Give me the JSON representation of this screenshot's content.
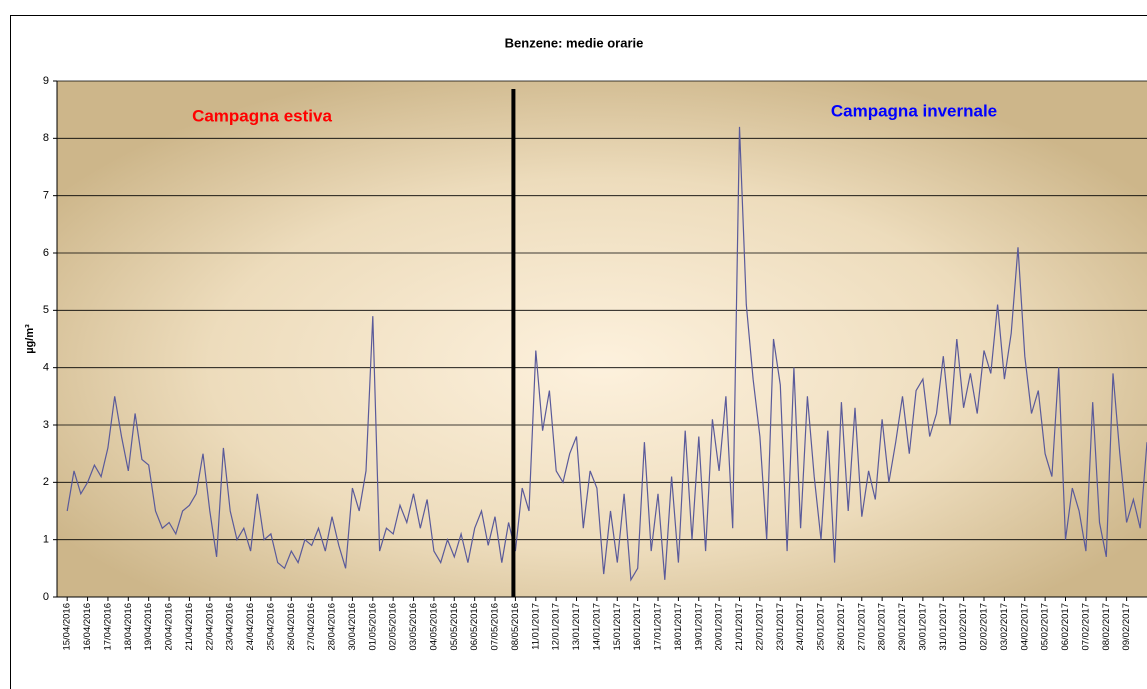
{
  "chart_data": {
    "type": "line",
    "title": "Benzene: medie orarie",
    "y_label": "µg/m³",
    "annotations": [
      {
        "text": "Campagna estiva",
        "color": "#ff0000"
      },
      {
        "text": "Campagna invernale",
        "color": "#0000ff"
      }
    ],
    "color": "#5a5a9a",
    "values": [
      1.5,
      2.2,
      1.8,
      2.0,
      2.3,
      2.1,
      2.6,
      3.5,
      2.8,
      2.2,
      3.2,
      2.4,
      2.3,
      1.5,
      1.2,
      1.3,
      1.1,
      1.5,
      1.6,
      1.8,
      2.5,
      1.5,
      0.7,
      2.6,
      1.5,
      1.0,
      1.2,
      0.8,
      1.8,
      1.0,
      1.1,
      0.6,
      0.5,
      0.8,
      0.6,
      1.0,
      0.9,
      1.2,
      0.8,
      1.4,
      0.9,
      0.5,
      1.9,
      1.5,
      2.2,
      4.9,
      0.8,
      1.2,
      1.1,
      1.6,
      1.3,
      1.8,
      1.2,
      1.7,
      0.8,
      0.6,
      1.0,
      0.7,
      1.1,
      0.6,
      1.2,
      1.5,
      0.9,
      1.4,
      0.6,
      1.3,
      0.8,
      1.9,
      1.5,
      4.3,
      2.9,
      3.6,
      2.2,
      2.0,
      2.5,
      2.8,
      1.2,
      2.2,
      1.9,
      0.4,
      1.5,
      0.6,
      1.8,
      0.3,
      0.5,
      2.7,
      0.8,
      1.8,
      0.3,
      2.1,
      0.6,
      2.9,
      1.0,
      2.8,
      0.8,
      3.1,
      2.2,
      3.5,
      1.2,
      8.2,
      5.1,
      3.8,
      2.8,
      1.0,
      4.5,
      3.7,
      0.8,
      4.0,
      1.2,
      3.5,
      2.1,
      1.0,
      2.9,
      0.6,
      3.4,
      1.5,
      3.3,
      1.4,
      2.2,
      1.7,
      3.1,
      2.0,
      2.7,
      3.5,
      2.5,
      3.6,
      3.8,
      2.8,
      3.2,
      4.2,
      3.0,
      4.5,
      3.3,
      3.9,
      3.2,
      4.3,
      3.9,
      5.1,
      3.8,
      4.6,
      6.1,
      4.2,
      3.2,
      3.6,
      2.5,
      2.1,
      4.0,
      1.0,
      1.9,
      1.5,
      0.8,
      3.4,
      1.3,
      0.7,
      3.9,
      2.5,
      1.3,
      1.7,
      1.2,
      2.7
    ],
    "xlim": [
      -1.5,
      159
    ],
    "xticks": [
      {
        "value": 0,
        "label": "15/04/2016"
      },
      {
        "value": 3,
        "label": "16/04/2016"
      },
      {
        "value": 6,
        "label": "17/04/2016"
      },
      {
        "value": 9,
        "label": "18/04/2016"
      },
      {
        "value": 12,
        "label": "19/04/2016"
      },
      {
        "value": 15,
        "label": "20/04/2016"
      },
      {
        "value": 18,
        "label": "21/04/2016"
      },
      {
        "value": 21,
        "label": "22/04/2016"
      },
      {
        "value": 24,
        "label": "23/04/2016"
      },
      {
        "value": 27,
        "label": "24/04/2016"
      },
      {
        "value": 30,
        "label": "25/04/2016"
      },
      {
        "value": 33,
        "label": "26/04/2016"
      },
      {
        "value": 36,
        "label": "27/04/2016"
      },
      {
        "value": 39,
        "label": "28/04/2016"
      },
      {
        "value": 42,
        "label": "30/04/2016"
      },
      {
        "value": 45,
        "label": "01/05/2016"
      },
      {
        "value": 48,
        "label": "02/05/2016"
      },
      {
        "value": 51,
        "label": "03/05/2016"
      },
      {
        "value": 54,
        "label": "04/05/2016"
      },
      {
        "value": 57,
        "label": "05/05/2016"
      },
      {
        "value": 60,
        "label": "06/05/2016"
      },
      {
        "value": 63,
        "label": "07/05/2016"
      },
      {
        "value": 66,
        "label": "08/05/2016"
      },
      {
        "value": 69,
        "label": "11/01/2017"
      },
      {
        "value": 72,
        "label": "12/01/2017"
      },
      {
        "value": 75,
        "label": "13/01/2017"
      },
      {
        "value": 78,
        "label": "14/01/2017"
      },
      {
        "value": 81,
        "label": "15/01/2017"
      },
      {
        "value": 84,
        "label": "16/01/2017"
      },
      {
        "value": 87,
        "label": "17/01/2017"
      },
      {
        "value": 90,
        "label": "18/01/2017"
      },
      {
        "value": 93,
        "label": "19/01/2017"
      },
      {
        "value": 96,
        "label": "20/01/2017"
      },
      {
        "value": 99,
        "label": "21/01/2017"
      },
      {
        "value": 102,
        "label": "22/01/2017"
      },
      {
        "value": 105,
        "label": "23/01/2017"
      },
      {
        "value": 108,
        "label": "24/01/2017"
      },
      {
        "value": 111,
        "label": "25/01/2017"
      },
      {
        "value": 114,
        "label": "26/01/2017"
      },
      {
        "value": 117,
        "label": "27/01/2017"
      },
      {
        "value": 120,
        "label": "28/01/2017"
      },
      {
        "value": 123,
        "label": "29/01/2017"
      },
      {
        "value": 126,
        "label": "30/01/2017"
      },
      {
        "value": 129,
        "label": "31/01/2017"
      },
      {
        "value": 132,
        "label": "01/02/2017"
      },
      {
        "value": 135,
        "label": "02/02/2017"
      },
      {
        "value": 138,
        "label": "03/02/2017"
      },
      {
        "value": 141,
        "label": "04/02/2017"
      },
      {
        "value": 144,
        "label": "05/02/2017"
      },
      {
        "value": 147,
        "label": "06/02/2017"
      },
      {
        "value": 150,
        "label": "07/02/2017"
      },
      {
        "value": 153,
        "label": "08/02/2017"
      },
      {
        "value": 156,
        "label": "09/02/2017"
      }
    ],
    "ylim": [
      0,
      9
    ],
    "yticks": [
      0,
      1,
      2,
      3,
      4,
      5,
      6,
      7,
      8,
      9
    ],
    "grid": true
  }
}
